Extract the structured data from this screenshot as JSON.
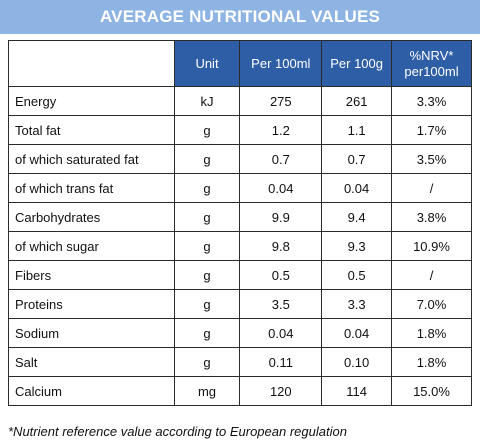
{
  "title": "AVERAGE NUTRITIONAL VALUES",
  "headers": [
    "",
    "Unit",
    "Per 100ml",
    "Per 100g",
    "%NRV*\nper100ml"
  ],
  "rows": [
    [
      "Energy",
      "kJ",
      "275",
      "261",
      "3.3%"
    ],
    [
      "Total fat",
      "g",
      "1.2",
      "1.1",
      "1.7%"
    ],
    [
      "of which saturated fat",
      "g",
      "0.7",
      "0.7",
      "3.5%"
    ],
    [
      "of which trans fat",
      "g",
      "0.04",
      "0.04",
      "/"
    ],
    [
      "Carbohydrates",
      "g",
      "9.9",
      "9.4",
      "3.8%"
    ],
    [
      "of which sugar",
      "g",
      "9.8",
      "9.3",
      "10.9%"
    ],
    [
      "Fibers",
      "g",
      "0.5",
      "0.5",
      "/"
    ],
    [
      "Proteins",
      "g",
      "3.5",
      "3.3",
      "7.0%"
    ],
    [
      "Sodium",
      "g",
      "0.04",
      "0.04",
      "1.8%"
    ],
    [
      "Salt",
      "g",
      "0.11",
      "0.10",
      "1.8%"
    ],
    [
      "Calcium",
      "mg",
      "120",
      "114",
      "15.0%"
    ]
  ],
  "footnote": "*Nutrient reference value according to European regulation"
}
